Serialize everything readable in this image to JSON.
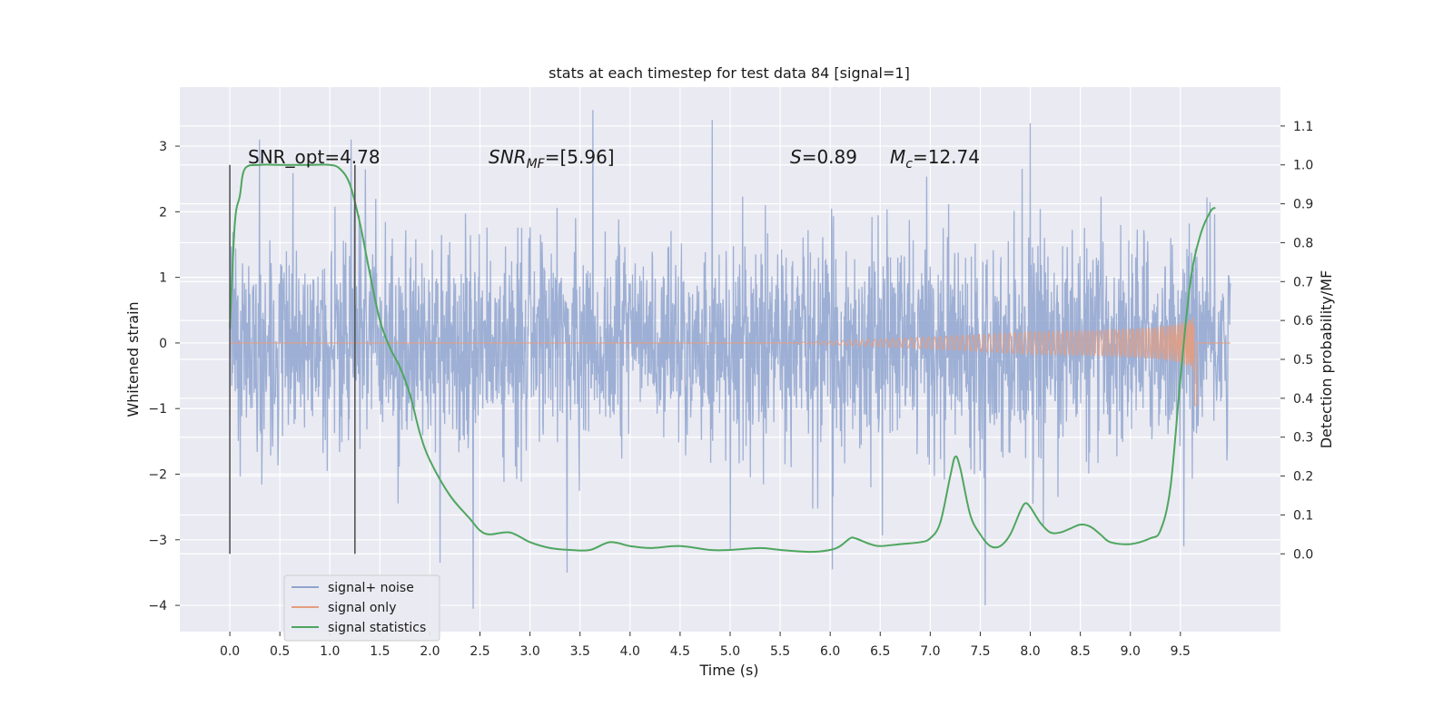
{
  "chart_data": {
    "type": "line",
    "title": "stats at each timestep for test data 84 [signal=1]",
    "xlabel": "Time (s)",
    "ylabel": "Whitened strain",
    "ylabel_right": "Detection probability/MF",
    "xlim": [
      -0.5,
      10.5
    ],
    "ylim": [
      -4.4,
      3.9
    ],
    "ylim_right": [
      -0.2,
      1.2
    ],
    "xticks": [
      "0.0",
      "0.5",
      "1.0",
      "1.5",
      "2.0",
      "2.5",
      "3.0",
      "3.5",
      "4.0",
      "4.5",
      "5.0",
      "5.5",
      "6.0",
      "6.5",
      "7.0",
      "7.5",
      "8.0",
      "8.5",
      "9.0",
      "9.5"
    ],
    "yticks": [
      "−4",
      "−3",
      "−2",
      "−1",
      "0",
      "1",
      "2",
      "3"
    ],
    "yticks_right": [
      "0.0",
      "0.1",
      "0.2",
      "0.3",
      "0.4",
      "0.5",
      "0.6",
      "0.7",
      "0.8",
      "0.9",
      "1.0",
      "1.1"
    ],
    "grid": true,
    "legend_position": "lower-left",
    "annotations": {
      "snr_opt": "SNR_opt=4.78",
      "snr_mf_base": "SNR",
      "snr_mf_sub": "MF",
      "snr_mf_value": "=[5.96]",
      "s_label": "S",
      "s_value": "=0.89",
      "mc_label": "M",
      "mc_sub": "c",
      "mc_value": "=12.74"
    },
    "vertical_lines_x": [
      0.0,
      1.25
    ],
    "series": [
      {
        "name": "signal+ noise",
        "color": "#8fa4cf",
        "x_range": [
          0.0,
          10.0
        ],
        "amplitude_envelope": "noise, mostly within ±1.5 with spikes to about ±3.5",
        "spikes": [
          {
            "x": 3.63,
            "y": 3.55
          },
          {
            "x": 4.82,
            "y": 3.4
          },
          {
            "x": 8.0,
            "y": 3.35
          },
          {
            "x": 2.43,
            "y": -4.05
          },
          {
            "x": 7.55,
            "y": -4.0
          },
          {
            "x": 3.37,
            "y": -3.5
          },
          {
            "x": 5.0,
            "y": -3.15
          },
          {
            "x": 6.02,
            "y": -3.45
          },
          {
            "x": 2.1,
            "y": -3.35
          }
        ]
      },
      {
        "name": "signal only",
        "color": "#e59c7e",
        "description": "chirp growing from 0 at x≈5.5 to ±0.35 near x=9.6, sharp dip to -0.95 at x≈9.65, flat 0 after",
        "x_range": [
          0.0,
          10.0
        ]
      },
      {
        "name": "signal statistics",
        "color": "#4ea65f",
        "axis": "right",
        "x": [
          0.0,
          0.05,
          0.1,
          0.15,
          0.3,
          0.5,
          0.8,
          1.0,
          1.1,
          1.2,
          1.3,
          1.4,
          1.5,
          1.6,
          1.7,
          1.8,
          1.9,
          2.0,
          2.2,
          2.4,
          2.5,
          2.6,
          2.8,
          3.0,
          3.2,
          3.4,
          3.6,
          3.8,
          4.0,
          4.2,
          4.5,
          4.8,
          5.0,
          5.3,
          5.5,
          5.8,
          6.0,
          6.1,
          6.2,
          6.25,
          6.4,
          6.5,
          6.7,
          6.9,
          7.0,
          7.1,
          7.2,
          7.25,
          7.3,
          7.4,
          7.5,
          7.6,
          7.7,
          7.8,
          7.9,
          7.95,
          8.0,
          8.1,
          8.2,
          8.3,
          8.4,
          8.5,
          8.6,
          8.7,
          8.8,
          9.0,
          9.2,
          9.3,
          9.4,
          9.5,
          9.6,
          9.7,
          9.8,
          9.85
        ],
        "y": [
          0.58,
          0.85,
          0.92,
          0.99,
          1.0,
          1.0,
          1.0,
          1.0,
          0.99,
          0.95,
          0.85,
          0.72,
          0.6,
          0.53,
          0.48,
          0.41,
          0.31,
          0.24,
          0.15,
          0.09,
          0.06,
          0.05,
          0.055,
          0.03,
          0.015,
          0.01,
          0.01,
          0.03,
          0.02,
          0.015,
          0.02,
          0.01,
          0.01,
          0.015,
          0.01,
          0.005,
          0.01,
          0.02,
          0.04,
          0.04,
          0.025,
          0.02,
          0.025,
          0.03,
          0.04,
          0.08,
          0.2,
          0.25,
          0.22,
          0.1,
          0.05,
          0.02,
          0.02,
          0.05,
          0.11,
          0.13,
          0.12,
          0.08,
          0.055,
          0.055,
          0.065,
          0.075,
          0.07,
          0.05,
          0.03,
          0.025,
          0.04,
          0.06,
          0.17,
          0.45,
          0.7,
          0.82,
          0.88,
          0.89
        ]
      }
    ]
  }
}
